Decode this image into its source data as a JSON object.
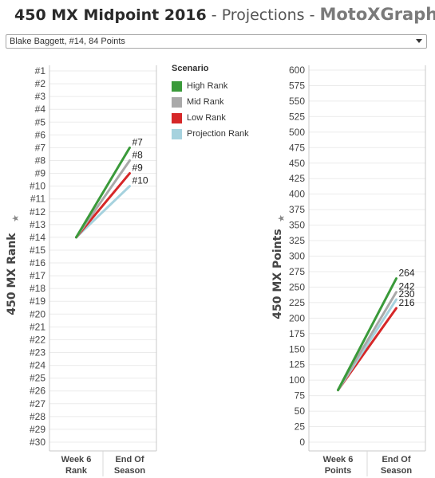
{
  "header": {
    "title_main": "450 MX Midpoint 2016",
    "separator": " - ",
    "title_section": "Projections",
    "title_brand": "MotoXGraphs"
  },
  "filter": {
    "selected": "Blake Baggett, #14, 84 Points"
  },
  "legend": {
    "title": "Scenario",
    "items": [
      {
        "name": "High Rank",
        "color": "#3a9a3a"
      },
      {
        "name": "Mid Rank",
        "color": "#a9a9a9"
      },
      {
        "name": "Low Rank",
        "color": "#d62728"
      },
      {
        "name": "Projection Rank",
        "color": "#a6d2de"
      }
    ]
  },
  "chart_data": [
    {
      "type": "line",
      "ylabel": "450 MX Rank",
      "y_reversed": true,
      "ylim": [
        1,
        30
      ],
      "ytick_prefix": "#",
      "categories": [
        "Week 6\nRank",
        "End Of\nSeason"
      ],
      "series": [
        {
          "name": "High Rank",
          "color": "#3a9a3a",
          "values": [
            14,
            7
          ],
          "end_label": "#7"
        },
        {
          "name": "Mid Rank",
          "color": "#a9a9a9",
          "values": [
            14,
            8
          ],
          "end_label": "#8"
        },
        {
          "name": "Low Rank",
          "color": "#d62728",
          "values": [
            14,
            9
          ],
          "end_label": "#9"
        },
        {
          "name": "Projection Rank",
          "color": "#a6d2de",
          "values": [
            14,
            10
          ],
          "end_label": "#10"
        }
      ]
    },
    {
      "type": "line",
      "ylabel": "450 MX Points",
      "ylim": [
        0,
        600
      ],
      "ytick_step": 25,
      "categories": [
        "Week 6\nPoints",
        "End Of\nSeason"
      ],
      "series": [
        {
          "name": "High Rank",
          "color": "#3a9a3a",
          "values": [
            84,
            264
          ],
          "end_label": "264"
        },
        {
          "name": "Mid Rank",
          "color": "#a9a9a9",
          "values": [
            84,
            242
          ],
          "end_label": "242"
        },
        {
          "name": "Projection Rank",
          "color": "#a6d2de",
          "values": [
            84,
            230
          ],
          "end_label": "230"
        },
        {
          "name": "Low Rank",
          "color": "#d62728",
          "values": [
            84,
            216
          ],
          "end_label": "216"
        }
      ]
    }
  ]
}
